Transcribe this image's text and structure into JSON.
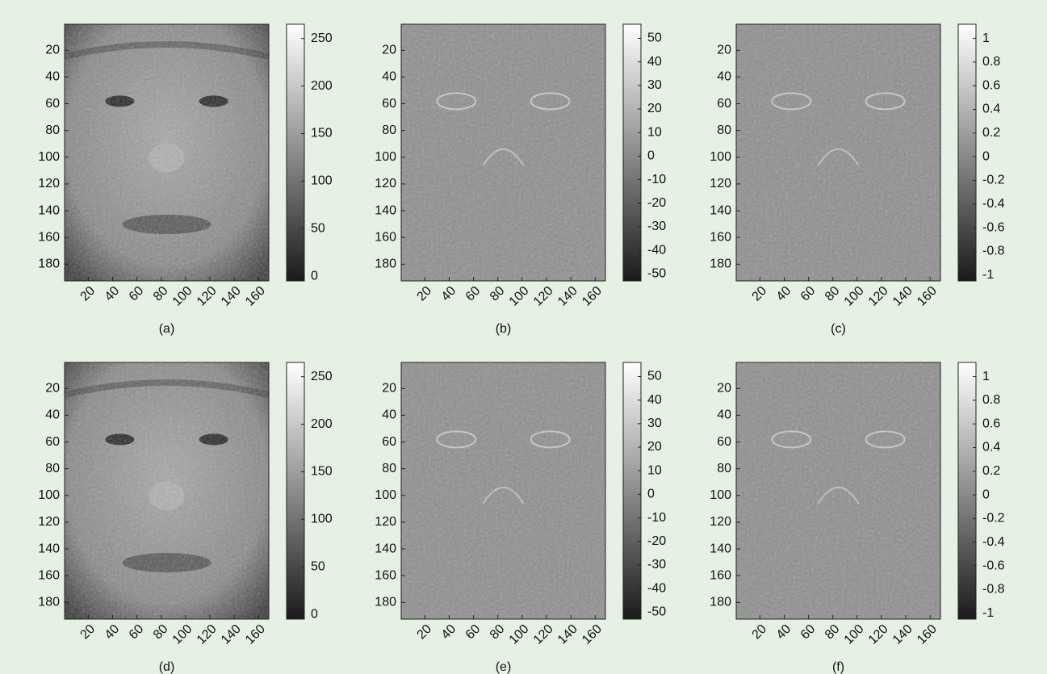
{
  "chart_data": [
    {
      "type": "image",
      "caption": "(a)",
      "xlim": [
        0.5,
        168.5
      ],
      "ylim": [
        0.5,
        192.5
      ],
      "xticks": [
        20,
        40,
        60,
        80,
        100,
        120,
        140,
        160
      ],
      "yticks": [
        20,
        40,
        60,
        80,
        100,
        120,
        140,
        160,
        180
      ],
      "clim": [
        -5,
        265
      ],
      "cticks": [
        0,
        50,
        100,
        150,
        200,
        250
      ]
    },
    {
      "type": "image",
      "caption": "(b)",
      "xlim": [
        0.5,
        168.5
      ],
      "ylim": [
        0.5,
        192.5
      ],
      "xticks": [
        20,
        40,
        60,
        80,
        100,
        120,
        140,
        160
      ],
      "yticks": [
        20,
        40,
        60,
        80,
        100,
        120,
        140,
        160,
        180
      ],
      "clim": [
        -53,
        56
      ],
      "cticks": [
        -50,
        -40,
        -30,
        -20,
        -10,
        0,
        10,
        20,
        30,
        40,
        50
      ]
    },
    {
      "type": "image",
      "caption": "(c)",
      "xlim": [
        0.5,
        168.5
      ],
      "ylim": [
        0.5,
        192.5
      ],
      "xticks": [
        20,
        40,
        60,
        80,
        100,
        120,
        140,
        160
      ],
      "yticks": [
        20,
        40,
        60,
        80,
        100,
        120,
        140,
        160,
        180
      ],
      "clim": [
        -1.05,
        1.12
      ],
      "cticks": [
        -1,
        -0.8,
        -0.6,
        -0.4,
        -0.2,
        0,
        0.2,
        0.4,
        0.6,
        0.8,
        1
      ]
    },
    {
      "type": "image",
      "caption": "(d)",
      "xlim": [
        0.5,
        168.5
      ],
      "ylim": [
        0.5,
        192.5
      ],
      "xticks": [
        20,
        40,
        60,
        80,
        100,
        120,
        140,
        160
      ],
      "yticks": [
        20,
        40,
        60,
        80,
        100,
        120,
        140,
        160,
        180
      ],
      "clim": [
        -5,
        265
      ],
      "cticks": [
        0,
        50,
        100,
        150,
        200,
        250
      ]
    },
    {
      "type": "image",
      "caption": "(e)",
      "xlim": [
        0.5,
        168.5
      ],
      "ylim": [
        0.5,
        192.5
      ],
      "xticks": [
        20,
        40,
        60,
        80,
        100,
        120,
        140,
        160
      ],
      "yticks": [
        20,
        40,
        60,
        80,
        100,
        120,
        140,
        160,
        180
      ],
      "clim": [
        -53,
        56
      ],
      "cticks": [
        -50,
        -40,
        -30,
        -20,
        -10,
        0,
        10,
        20,
        30,
        40,
        50
      ]
    },
    {
      "type": "image",
      "caption": "(f)",
      "xlim": [
        0.5,
        168.5
      ],
      "ylim": [
        0.5,
        192.5
      ],
      "xticks": [
        20,
        40,
        60,
        80,
        100,
        120,
        140,
        160
      ],
      "yticks": [
        20,
        40,
        60,
        80,
        100,
        120,
        140,
        160,
        180
      ],
      "clim": [
        -1.05,
        1.12
      ],
      "cticks": [
        -1,
        -0.8,
        -0.6,
        -0.4,
        -0.2,
        0,
        0.2,
        0.4,
        0.6,
        0.8,
        1
      ]
    }
  ]
}
